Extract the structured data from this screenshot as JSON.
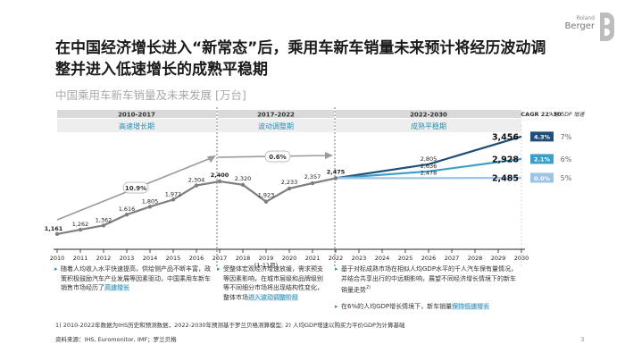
{
  "title": "在中国经济增长进入“新常态”后，乘用车新车销量未来预计将经历波动调整并进入低速增长的成熟平稳期",
  "subtitle": "中国乘用车新车销量及未来发展 [万台]",
  "logo": {
    "line1": "Roland",
    "line2": "Berger"
  },
  "periods": [
    {
      "range": "2010-2017",
      "label": "高速增长期"
    },
    {
      "range": "2017-2022",
      "label": "波动调整期"
    },
    {
      "range": "2022-2030",
      "label": "成熟平稳期"
    }
  ],
  "arrows": {
    "first": "10.9%",
    "second": "0.6%"
  },
  "cagr": {
    "header": "CAGR 22'-30'",
    "gdp_header": "人均 GDP 增速"
  },
  "chart_data": {
    "type": "line",
    "title": "中国乘用车新车销量及未来发展 [万台]",
    "x_tick_labels": [
      "2010",
      "2011",
      "2012",
      "2013",
      "2014",
      "2015",
      "2016",
      "2017",
      "2018",
      "2019 (1-11月)",
      "2020",
      "2021",
      "2022",
      "2023",
      "2024",
      "2025",
      "2026",
      "2027",
      "2028",
      "2029",
      "2030"
    ],
    "xlim": [
      2010,
      2030
    ],
    "ylim": [
      800,
      3600
    ],
    "series": [
      {
        "points": [
          [
            2010,
            1161
          ],
          [
            2011,
            1262
          ],
          [
            2012,
            1362
          ],
          [
            2013,
            1616
          ],
          [
            2014,
            1805
          ],
          [
            2015,
            1971
          ],
          [
            2016,
            2304
          ],
          [
            2017,
            2400
          ],
          [
            2018,
            2320
          ],
          [
            2019,
            1923
          ],
          [
            2020,
            2233
          ],
          [
            2021,
            2357
          ],
          [
            2022,
            2475
          ]
        ]
      },
      {
        "points": [
          [
            2022,
            2475
          ],
          [
            2026,
            2805
          ],
          [
            2030,
            3456
          ]
        ],
        "cagr": "4.3%",
        "gdp": "7%"
      },
      {
        "points": [
          [
            2022,
            2475
          ],
          [
            2026,
            2636
          ],
          [
            2030,
            2928
          ]
        ],
        "cagr": "2.1%",
        "gdp": "6%"
      },
      {
        "points": [
          [
            2022,
            2475
          ],
          [
            2026,
            2478
          ],
          [
            2030,
            2485
          ]
        ],
        "cagr": "0.0%",
        "gdp": "5%"
      }
    ],
    "data_labels": [
      "1,161",
      "1,262",
      "1,362",
      "1,616",
      "1,805",
      "1,971",
      "2,304",
      "2,400",
      "2,320",
      "1,923",
      "2,233",
      "2,357",
      "2,475",
      "2,805",
      "2,636",
      "2,478",
      "3,456",
      "2,928",
      "2,485"
    ]
  },
  "notes": {
    "n1": {
      "text": "随着人均收入水平快速提高，供给侧产品不断丰富，政策积极鼓励汽车产业发展等因素驱动，中国乘用车新车销售市场经历了",
      "highlight": "高速增长"
    },
    "n2": {
      "text": "受整体宏观经济增速放缓，需求预支等因素影响，在城市层级和品牌级别等不同细分市场将出现结构性变化，整体市场",
      "highlight": "进入波动调整阶段"
    },
    "n3": {
      "text": "基于对标成熟市场在相似人均GDP水平的千人汽车保有量情况，并结合共享出行的中远期影响，展望不同经济增长情境下的新车销量走势",
      "sup": "2)"
    },
    "n4": {
      "text": "在6%的人均GDP增长情境下，新车销量",
      "highlight": "保持低速增长"
    }
  },
  "footnote": "1) 2010-2022年数据为IHS历史和预测数据，2022-2030年预测基于罗兰贝格测算模型; 2) 人均GDP增速以购买力平价GDP为计算基础",
  "source": "资料来源：IHS, Euromonitor, IMF；罗兰贝格",
  "page_number": "3",
  "colors": {
    "history": "#7f7f7f",
    "high": "#1f4e79",
    "mid": "#3c9fc9",
    "low": "#9dc3e6",
    "teal": "#2a8fb5"
  }
}
